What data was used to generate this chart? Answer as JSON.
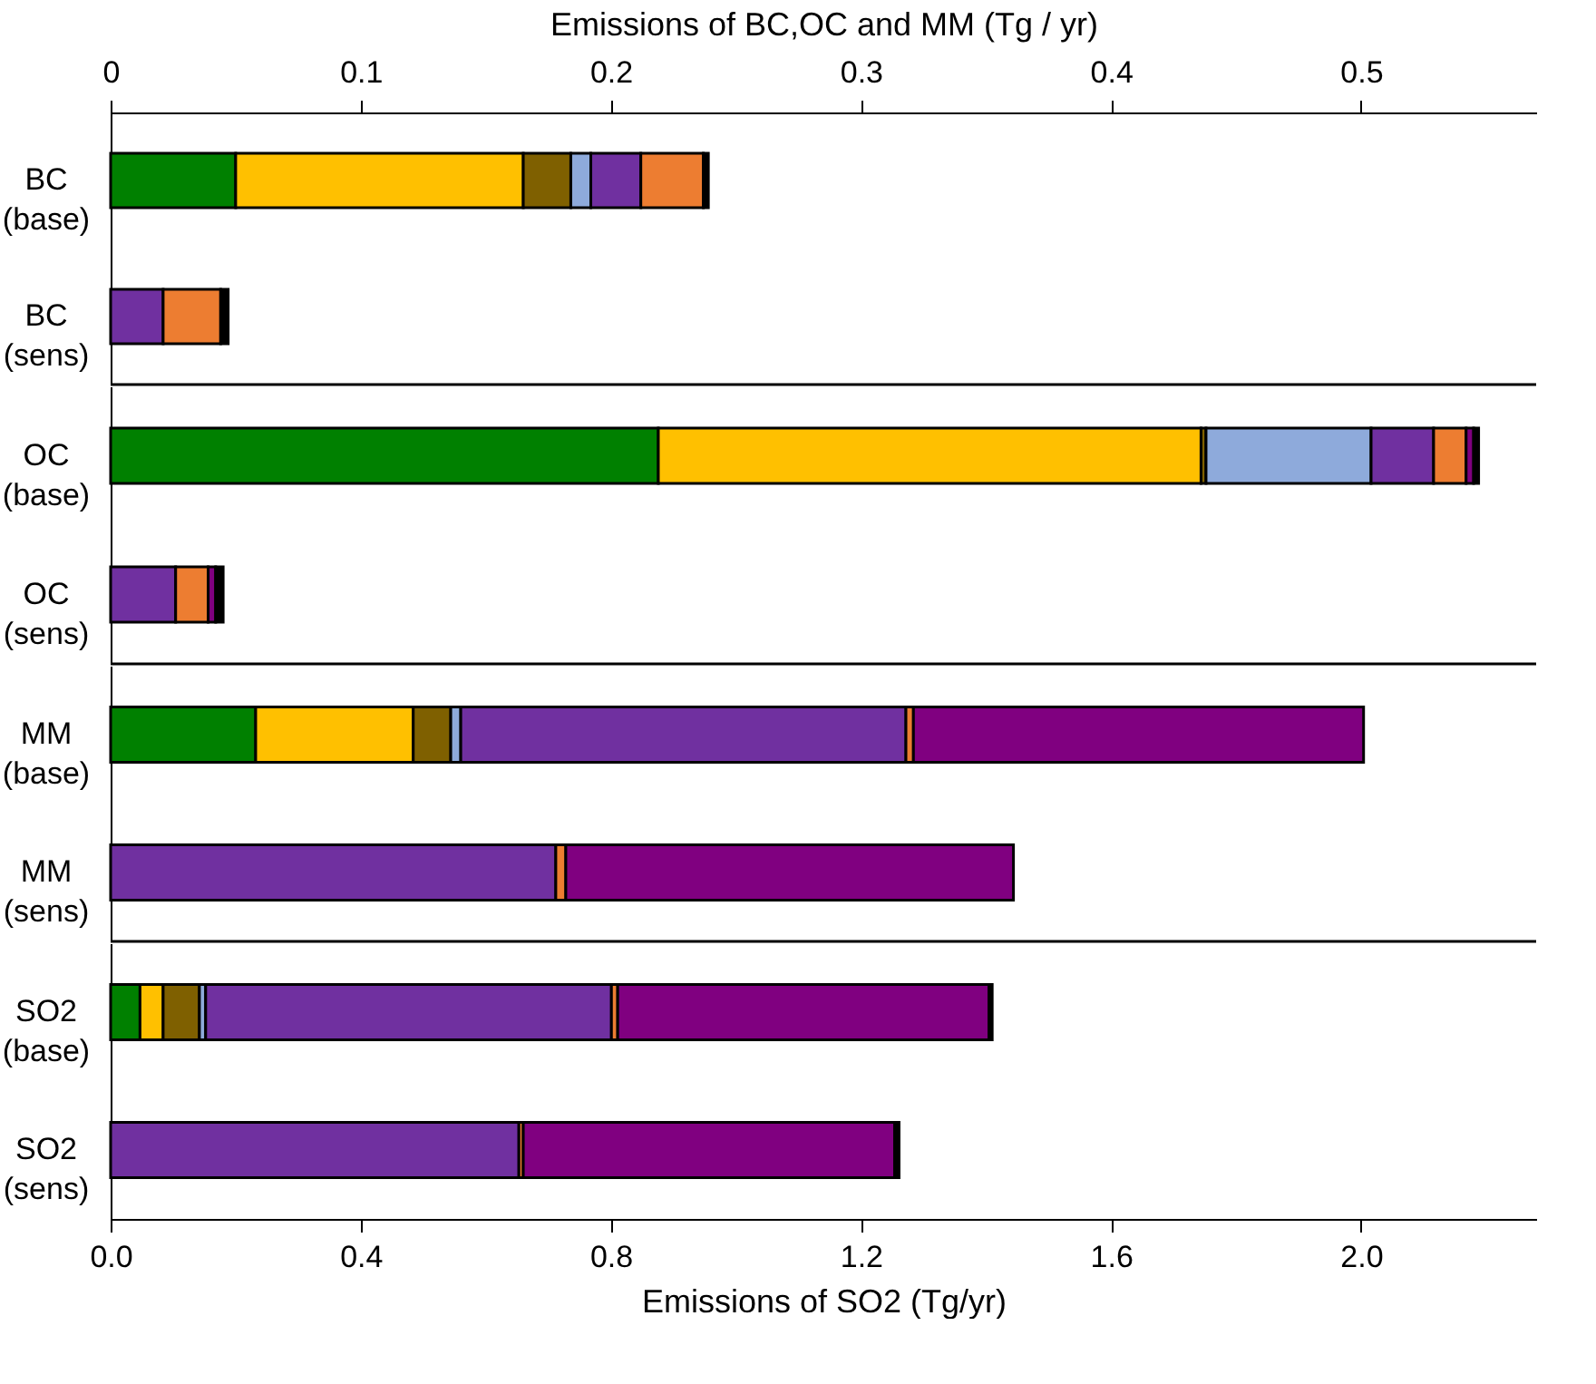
{
  "chart_data": [
    {
      "type": "bar",
      "orientation": "horizontal",
      "stacked": true,
      "xlabel": "Emissions of BC,OC and MM (Tg / yr)",
      "categories": [
        "BC (base)",
        "BC (sens)"
      ],
      "xlim": [
        0,
        0.57
      ],
      "xticks": [
        0,
        0.1,
        0.2,
        0.3,
        0.4,
        0.5
      ],
      "legend": false,
      "series": [
        {
          "color": "#008000",
          "values": [
            0.05,
            null
          ]
        },
        {
          "color": "#ffc000",
          "values": [
            0.115,
            null
          ]
        },
        {
          "color": "#7f6000",
          "values": [
            0.019,
            null
          ]
        },
        {
          "color": "#8eaadb",
          "values": [
            0.008,
            null
          ]
        },
        {
          "color": "#7030a0",
          "values": [
            0.02,
            0.021
          ]
        },
        {
          "color": "#ed7d31",
          "values": [
            0.025,
            0.023
          ]
        },
        {
          "color": "#800080",
          "values": [
            null,
            null
          ]
        },
        {
          "color": "#000000",
          "values": [
            0.002,
            0.003
          ]
        }
      ]
    },
    {
      "type": "bar",
      "orientation": "horizontal",
      "stacked": true,
      "categories": [
        "OC (base)",
        "OC (sens)"
      ],
      "xlim": [
        0,
        0.57
      ],
      "xticks": [
        0,
        0.1,
        0.2,
        0.3,
        0.4,
        0.5
      ],
      "tick_labels": "y",
      "legend": false,
      "series": [
        {
          "color": "#008000",
          "values": [
            0.219,
            null
          ]
        },
        {
          "color": "#ffc000",
          "values": [
            0.217,
            null
          ]
        },
        {
          "color": "#7f6000",
          "values": [
            0.002,
            null
          ]
        },
        {
          "color": "#8eaadb",
          "values": [
            0.066,
            null
          ]
        },
        {
          "color": "#7030a0",
          "values": [
            0.025,
            0.026
          ]
        },
        {
          "color": "#ed7d31",
          "values": [
            0.013,
            0.013
          ]
        },
        {
          "color": "#800080",
          "values": [
            0.003,
            0.003
          ]
        },
        {
          "color": "#000000",
          "values": [
            0.002,
            0.003
          ]
        }
      ]
    },
    {
      "type": "bar",
      "orientation": "horizontal",
      "stacked": true,
      "categories": [
        "MM (base)",
        "MM (sens)"
      ],
      "xlim": [
        0,
        0.57
      ],
      "xticks": [
        0,
        0.1,
        0.2,
        0.3,
        0.4,
        0.5
      ],
      "tick_labels": "y",
      "legend": false,
      "series": [
        {
          "color": "#008000",
          "values": [
            0.058,
            null
          ]
        },
        {
          "color": "#ffc000",
          "values": [
            0.063,
            null
          ]
        },
        {
          "color": "#7f6000",
          "values": [
            0.015,
            null
          ]
        },
        {
          "color": "#8eaadb",
          "values": [
            0.004,
            null
          ]
        },
        {
          "color": "#7030a0",
          "values": [
            0.178,
            0.178
          ]
        },
        {
          "color": "#ed7d31",
          "values": [
            0.003,
            0.004
          ]
        },
        {
          "color": "#800080",
          "values": [
            0.18,
            0.179
          ]
        },
        {
          "color": "#000000",
          "values": [
            null,
            null
          ]
        }
      ]
    },
    {
      "type": "bar",
      "orientation": "horizontal",
      "stacked": true,
      "xlabel": "Emissions of SO2 (Tg/yr)",
      "categories": [
        "SO2 (base)",
        "SO2 (sens)"
      ],
      "xlim": [
        0,
        2.28
      ],
      "xticks": [
        {
          "value": 0,
          "label": "0.0"
        },
        0.4,
        0.8,
        1.2,
        1.6,
        {
          "value": 2,
          "label": "2.0"
        }
      ],
      "legend": false,
      "series": [
        {
          "color": "#008000",
          "values": [
            0.047,
            null
          ]
        },
        {
          "color": "#ffc000",
          "values": [
            0.037,
            null
          ]
        },
        {
          "color": "#7f6000",
          "values": [
            0.058,
            null
          ]
        },
        {
          "color": "#8eaadb",
          "values": [
            0.01,
            null
          ]
        },
        {
          "color": "#7030a0",
          "values": [
            0.649,
            0.653
          ]
        },
        {
          "color": "#ed7d31",
          "values": [
            0.01,
            0.007
          ]
        },
        {
          "color": "#800080",
          "values": [
            0.594,
            0.594
          ]
        },
        {
          "color": "#000000",
          "values": [
            0.005,
            0.007
          ]
        }
      ]
    }
  ]
}
